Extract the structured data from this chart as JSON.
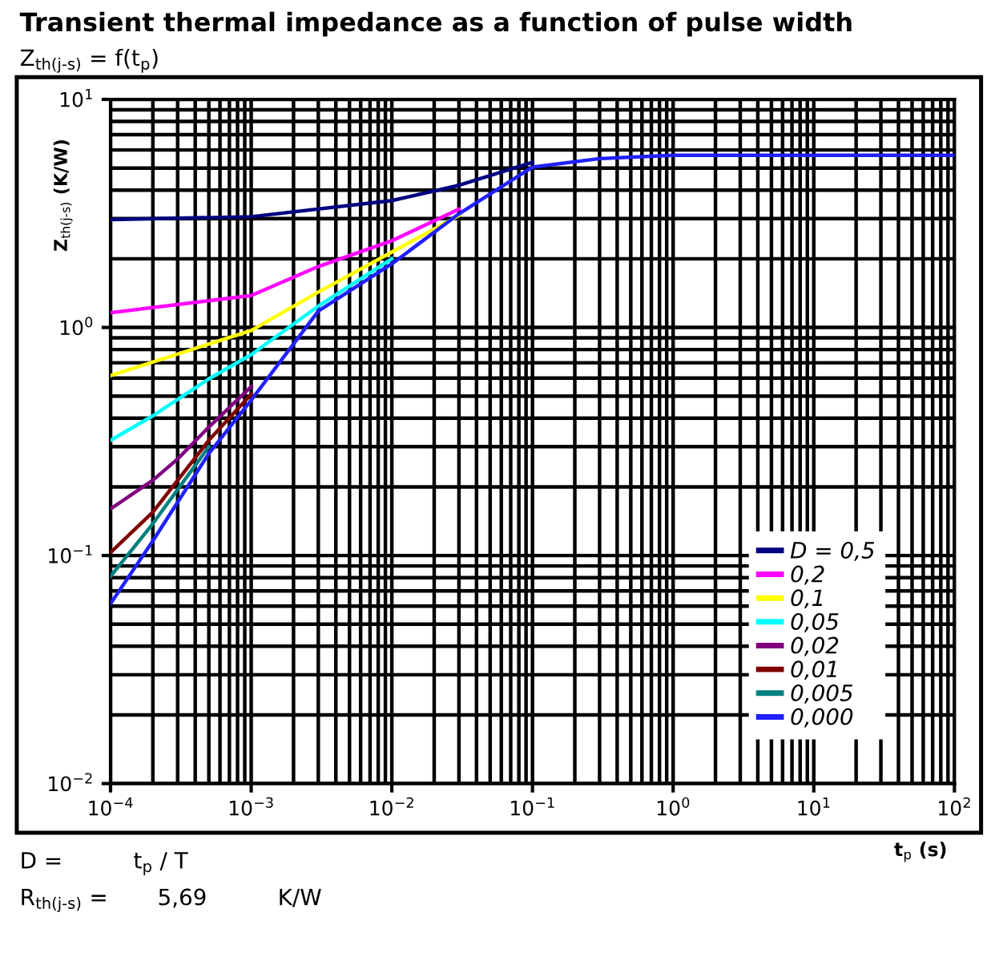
{
  "chart_data": {
    "type": "line",
    "title": "Transient thermal impedance as a function of pulse width",
    "subtitle": "Z$_{th(j-s)}$ = f(t$_{p}$)",
    "xlabel": "t$_{p}$ (s)",
    "ylabel": "Z$_{th(j-s)}$ (K/W)",
    "log": "xy",
    "xlim": [
      0.0001,
      100
    ],
    "ylim": [
      0.01,
      10
    ],
    "xticks": [
      {
        "value": 0.0001,
        "label": "10$^{−4}$"
      },
      {
        "value": 0.001,
        "label": "10$^{−3}$"
      },
      {
        "value": 0.01,
        "label": "10$^{−2}$"
      },
      {
        "value": 0.1,
        "label": "10$^{−1}$"
      },
      {
        "value": 1,
        "label": "10$^{0}$"
      },
      {
        "value": 10,
        "label": "10$^{1}$"
      },
      {
        "value": 100,
        "label": "10$^{2}$"
      }
    ],
    "yticks": [
      {
        "value": 0.01,
        "label": "10$^{−2}$"
      },
      {
        "value": 0.1,
        "label": "10$^{−1}$"
      },
      {
        "value": 1,
        "label": "10$^{0}$"
      },
      {
        "value": 10,
        "label": "10$^{1}$"
      }
    ],
    "grid": true,
    "legend": "bottom right",
    "series": [
      {
        "name": "D = 0,5",
        "color": "#000080",
        "x": [
          0.0001,
          0.001,
          0.01,
          0.03,
          0.1
        ],
        "values": [
          2.97,
          3.06,
          3.6,
          4.2,
          5.3
        ]
      },
      {
        "name": "0,2",
        "color": "#ff00ff",
        "x": [
          0.0001,
          0.001,
          0.003,
          0.01,
          0.03
        ],
        "values": [
          1.16,
          1.38,
          1.85,
          2.4,
          3.3
        ]
      },
      {
        "name": "0,1",
        "color": "#ffff00",
        "x": [
          0.0001,
          0.001,
          0.003,
          0.01,
          0.03
        ],
        "values": [
          0.615,
          0.97,
          1.43,
          2.14,
          3.1
        ]
      },
      {
        "name": "0,05",
        "color": "#00ffff",
        "x": [
          0.0001,
          0.0002,
          0.0005,
          0.001,
          0.003,
          0.01
        ],
        "values": [
          0.32,
          0.41,
          0.595,
          0.76,
          1.24,
          2.0
        ]
      },
      {
        "name": "0,02",
        "color": "#800080",
        "x": [
          0.0001,
          0.0002,
          0.0003,
          0.0005,
          0.001
        ],
        "values": [
          0.16,
          0.214,
          0.265,
          0.366,
          0.55
        ]
      },
      {
        "name": "0,01",
        "color": "#800000",
        "x": [
          0.0001,
          0.0002,
          0.0005,
          0.001
        ],
        "values": [
          0.103,
          0.155,
          0.32,
          0.51
        ]
      },
      {
        "name": "0,005",
        "color": "#008080",
        "x": [
          0.0001,
          0.0002,
          0.0005
        ],
        "values": [
          0.081,
          0.138,
          0.3
        ]
      },
      {
        "name": "0,000",
        "color": "#2020ff",
        "x": [
          0.0001,
          0.0002,
          0.0005,
          0.001,
          0.003,
          0.01,
          0.03,
          0.1,
          0.3,
          1,
          10,
          100
        ],
        "values": [
          0.0615,
          0.116,
          0.28,
          0.48,
          1.18,
          1.9,
          3.15,
          5.05,
          5.5,
          5.69,
          5.69,
          5.69
        ]
      }
    ],
    "annotations": [
      "D =          t$_{p}$ / T",
      "R$_{th(j-s)}$ =       5,69          K/W"
    ]
  }
}
